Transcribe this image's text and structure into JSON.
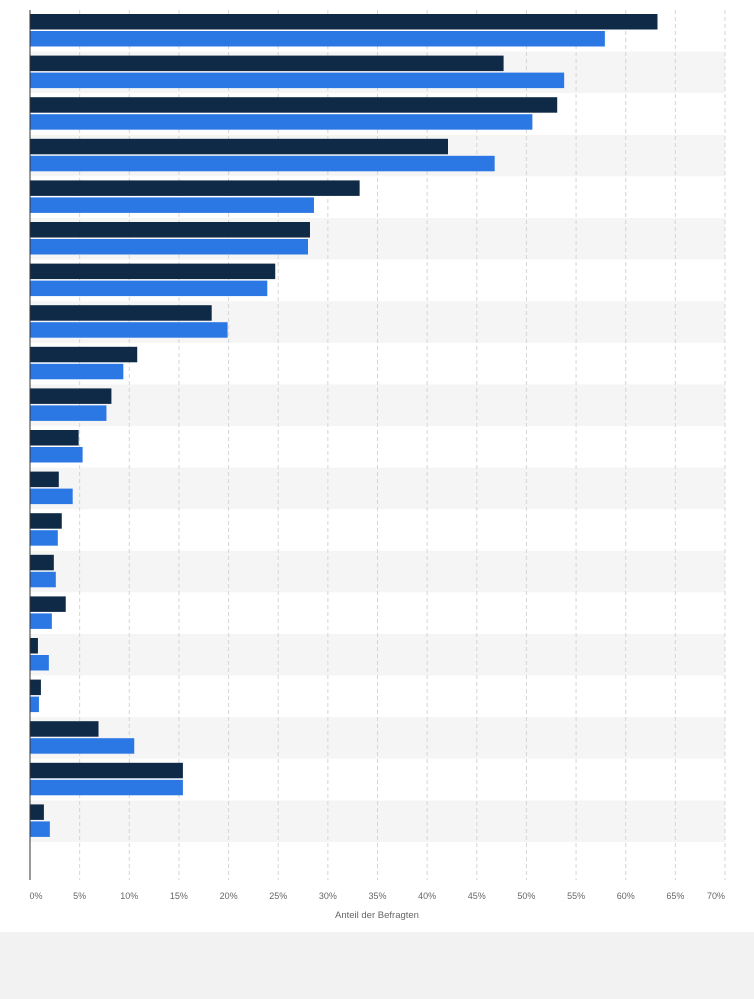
{
  "chart_data": {
    "type": "bar",
    "orientation": "horizontal",
    "categories": [
      "",
      "",
      "",
      "",
      "",
      "",
      "",
      "",
      "",
      "",
      "",
      "",
      "",
      "",
      "",
      "",
      "",
      "",
      "",
      ""
    ],
    "series": [
      {
        "color": "#0f2a47",
        "values": [
          63.2,
          47.7,
          53.1,
          42.1,
          33.2,
          28.2,
          24.7,
          18.3,
          10.8,
          8.2,
          4.9,
          2.9,
          3.2,
          2.4,
          3.6,
          0.8,
          1.1,
          6.9,
          15.4,
          1.4
        ]
      },
      {
        "color": "#2b78e4",
        "values": [
          57.9,
          53.8,
          50.6,
          46.8,
          28.6,
          28.0,
          23.9,
          19.9,
          9.4,
          7.7,
          5.3,
          4.3,
          2.8,
          2.6,
          2.2,
          1.9,
          0.9,
          10.5,
          15.4,
          2.0
        ]
      }
    ],
    "xlabel": "Anteil der Befragten",
    "ylabel": "",
    "xlim": [
      0,
      70
    ],
    "x_ticks": [
      "0%",
      "5%",
      "10%",
      "15%",
      "20%",
      "25%",
      "30%",
      "35%",
      "40%",
      "45%",
      "50%",
      "55%",
      "60%",
      "65%",
      "70%"
    ],
    "grid": true,
    "legend": "none"
  }
}
